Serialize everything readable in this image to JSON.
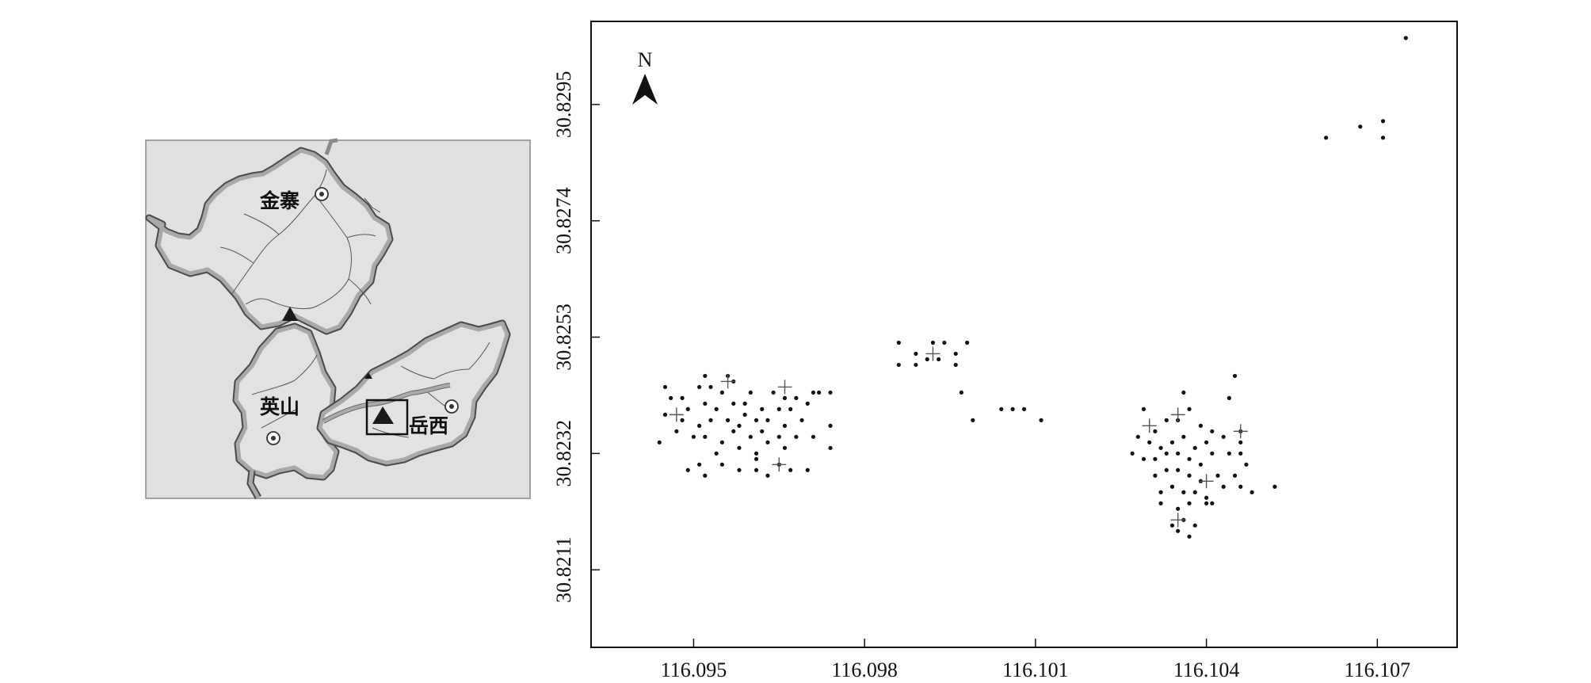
{
  "inset_map": {
    "labels": [
      {
        "id": "jinzhai",
        "text": "金寨"
      },
      {
        "id": "yingshan",
        "text": "英山"
      },
      {
        "id": "yuexi",
        "text": "岳西"
      }
    ],
    "colors": {
      "fill": "#e0e0e0",
      "boundary": "#8a8a8a",
      "boundary_outline": "#4a4a4a",
      "rivers": "#555555",
      "frame": "#888888"
    }
  },
  "north_arrow": {
    "label": "N"
  },
  "chart_data": {
    "type": "scatter",
    "xlabel": "",
    "ylabel": "",
    "x_ticks": [
      "116.095",
      "116.098",
      "116.101",
      "116.104",
      "116.107"
    ],
    "y_ticks": [
      "30.8211",
      "30.8232",
      "30.8253",
      "30.8274",
      "30.8295"
    ],
    "x_range": [
      116.0932,
      116.1084
    ],
    "y_range": [
      30.8197,
      30.831
    ],
    "series": [
      {
        "marker": "dot",
        "points": [
          [
            116.0945,
            30.8244
          ],
          [
            116.0948,
            30.8242
          ],
          [
            116.0951,
            30.8244
          ],
          [
            116.0953,
            30.8244
          ],
          [
            116.0955,
            30.8243
          ],
          [
            116.0957,
            30.8245
          ],
          [
            116.096,
            30.8243
          ],
          [
            116.0964,
            30.8243
          ],
          [
            116.0966,
            30.8242
          ],
          [
            116.0968,
            30.8242
          ],
          [
            116.0971,
            30.8243
          ],
          [
            116.0972,
            30.8243
          ],
          [
            116.0946,
            30.8242
          ],
          [
            116.0949,
            30.824
          ],
          [
            116.0952,
            30.8241
          ],
          [
            116.0954,
            30.824
          ],
          [
            116.0957,
            30.8241
          ],
          [
            116.0959,
            30.8241
          ],
          [
            116.0962,
            30.824
          ],
          [
            116.0965,
            30.824
          ],
          [
            116.0967,
            30.824
          ],
          [
            116.097,
            30.8241
          ],
          [
            116.0945,
            30.8239
          ],
          [
            116.0948,
            30.8238
          ],
          [
            116.0951,
            30.8237
          ],
          [
            116.0953,
            30.8238
          ],
          [
            116.0956,
            30.8238
          ],
          [
            116.0958,
            30.8237
          ],
          [
            116.0961,
            30.8238
          ],
          [
            116.0963,
            30.8238
          ],
          [
            116.0966,
            30.8237
          ],
          [
            116.0969,
            30.8238
          ],
          [
            116.0947,
            30.8236
          ],
          [
            116.095,
            30.8235
          ],
          [
            116.0952,
            30.8235
          ],
          [
            116.0955,
            30.8234
          ],
          [
            116.0957,
            30.8236
          ],
          [
            116.096,
            30.8235
          ],
          [
            116.0963,
            30.8234
          ],
          [
            116.0965,
            30.8235
          ],
          [
            116.0968,
            30.8235
          ],
          [
            116.0971,
            30.8235
          ],
          [
            116.0944,
            30.8234
          ],
          [
            116.0954,
            30.8232
          ],
          [
            116.0958,
            30.8233
          ],
          [
            116.0961,
            30.8232
          ],
          [
            116.0966,
            30.8233
          ],
          [
            116.0949,
            30.8229
          ],
          [
            116.0951,
            30.823
          ],
          [
            116.0952,
            30.8228
          ],
          [
            116.0955,
            30.823
          ],
          [
            116.0961,
            30.8229
          ],
          [
            116.0963,
            30.8228
          ],
          [
            116.0965,
            30.823
          ],
          [
            116.0967,
            30.8229
          ],
          [
            116.097,
            30.8229
          ],
          [
            116.0974,
            30.8243
          ],
          [
            116.0974,
            30.8237
          ],
          [
            116.0974,
            30.8233
          ],
          [
            116.0961,
            30.8231
          ],
          [
            116.0958,
            30.8229
          ],
          [
            116.0959,
            30.8239
          ],
          [
            116.0962,
            30.8236
          ],
          [
            116.0956,
            30.8246
          ],
          [
            116.0952,
            30.8246
          ],
          [
            116.0986,
            30.8252
          ],
          [
            116.0989,
            30.825
          ],
          [
            116.0992,
            30.8252
          ],
          [
            116.0994,
            30.8252
          ],
          [
            116.0996,
            30.825
          ],
          [
            116.0998,
            30.8252
          ],
          [
            116.0989,
            30.8248
          ],
          [
            116.0991,
            30.8249
          ],
          [
            116.0993,
            30.8249
          ],
          [
            116.0996,
            30.8248
          ],
          [
            116.0997,
            30.8243
          ],
          [
            116.0999,
            30.8238
          ],
          [
            116.1004,
            30.824
          ],
          [
            116.1006,
            30.824
          ],
          [
            116.1008,
            30.824
          ],
          [
            116.1011,
            30.8238
          ],
          [
            116.0986,
            30.8248
          ],
          [
            116.1029,
            30.824
          ],
          [
            116.1031,
            30.8236
          ],
          [
            116.1033,
            30.8238
          ],
          [
            116.1035,
            30.8238
          ],
          [
            116.1037,
            30.824
          ],
          [
            116.1039,
            30.8237
          ],
          [
            116.1041,
            30.8236
          ],
          [
            116.1044,
            30.8242
          ],
          [
            116.1046,
            30.8236
          ],
          [
            116.1028,
            30.8235
          ],
          [
            116.103,
            30.8234
          ],
          [
            116.1032,
            30.8233
          ],
          [
            116.1034,
            30.8234
          ],
          [
            116.1036,
            30.8235
          ],
          [
            116.1038,
            30.8233
          ],
          [
            116.104,
            30.8234
          ],
          [
            116.1043,
            30.8235
          ],
          [
            116.1027,
            30.8232
          ],
          [
            116.1029,
            30.8231
          ],
          [
            116.1031,
            30.8231
          ],
          [
            116.1033,
            30.8232
          ],
          [
            116.1035,
            30.8232
          ],
          [
            116.1037,
            30.8231
          ],
          [
            116.1039,
            30.823
          ],
          [
            116.1041,
            30.8232
          ],
          [
            116.1044,
            30.8232
          ],
          [
            116.1046,
            30.8232
          ],
          [
            116.1031,
            30.8228
          ],
          [
            116.1033,
            30.8229
          ],
          [
            116.1035,
            30.8229
          ],
          [
            116.1037,
            30.8228
          ],
          [
            116.1039,
            30.8227
          ],
          [
            116.1042,
            30.8228
          ],
          [
            116.1045,
            30.8228
          ],
          [
            116.1047,
            30.823
          ],
          [
            116.1032,
            30.8225
          ],
          [
            116.1034,
            30.8226
          ],
          [
            116.1036,
            30.8225
          ],
          [
            116.1038,
            30.8225
          ],
          [
            116.104,
            30.8224
          ],
          [
            116.1043,
            30.8226
          ],
          [
            116.1046,
            30.8226
          ],
          [
            116.1048,
            30.8225
          ],
          [
            116.1032,
            30.8223
          ],
          [
            116.1035,
            30.8222
          ],
          [
            116.1037,
            30.8223
          ],
          [
            116.104,
            30.8223
          ],
          [
            116.1041,
            30.8223
          ],
          [
            116.1034,
            30.8219
          ],
          [
            116.1036,
            30.822
          ],
          [
            116.1038,
            30.8219
          ],
          [
            116.1035,
            30.8218
          ],
          [
            116.1037,
            30.8217
          ],
          [
            116.1052,
            30.8226
          ],
          [
            116.1045,
            30.8246
          ],
          [
            116.1036,
            30.8243
          ],
          [
            116.1046,
            30.8234
          ],
          [
            116.1061,
            30.8289
          ],
          [
            116.1067,
            30.8291
          ],
          [
            116.1071,
            30.8292
          ],
          [
            116.1071,
            30.8289
          ],
          [
            116.1075,
            30.8307
          ]
        ]
      },
      {
        "marker": "cross",
        "points": [
          [
            116.0947,
            30.8239
          ],
          [
            116.0956,
            30.8245
          ],
          [
            116.0966,
            30.8244
          ],
          [
            116.0965,
            30.823
          ],
          [
            116.0992,
            30.825
          ],
          [
            116.103,
            30.8237
          ],
          [
            116.1035,
            30.8239
          ],
          [
            116.1046,
            30.8236
          ],
          [
            116.104,
            30.8227
          ],
          [
            116.1035,
            30.822
          ]
        ]
      }
    ],
    "grid": false,
    "legend": "none"
  }
}
